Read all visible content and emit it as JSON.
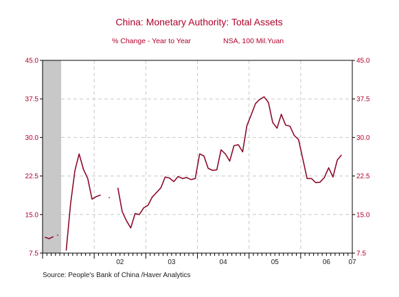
{
  "chart_data": {
    "type": "line",
    "title": "China: Monetary Authority: Total Assets",
    "subtitle_left": "% Change - Year to Year",
    "subtitle_right": "NSA, 100 Mil.Yuan",
    "source": "Source:  People's Bank of China /Haver Analytics",
    "xlim": [
      2001.0,
      2007.0
    ],
    "ylim": [
      7.5,
      45.0
    ],
    "y_ticks": [
      "45.0",
      "37.5",
      "30.0",
      "22.5",
      "15.0",
      "7.5"
    ],
    "y_tick_values": [
      45.0,
      37.5,
      30.0,
      22.5,
      15.0,
      7.5
    ],
    "x_ticks": [
      {
        "label": "02",
        "x": 2002.5
      },
      {
        "label": "03",
        "x": 2003.5
      },
      {
        "label": "04",
        "x": 2004.5
      },
      {
        "label": "05",
        "x": 2005.5
      },
      {
        "label": "06",
        "x": 2006.5
      },
      {
        "label": "07",
        "x": 2007.0
      }
    ],
    "x_gridlines": [
      2002,
      2003,
      2004,
      2005,
      2006
    ],
    "y_gridlines": [
      15.0,
      22.5,
      30.0,
      37.5
    ],
    "grid": true,
    "shaded_region": {
      "x_start": 2001.0,
      "x_end": 2001.36,
      "color": "#c8c8c8"
    },
    "line_color": "#8b0a2a",
    "series": [
      {
        "segments": [
          [
            [
              2001.042,
              10.6
            ],
            [
              2001.125,
              10.3
            ],
            [
              2001.208,
              10.7
            ]
          ],
          [
            [
              2001.292,
              11.1
            ],
            [
              2001.292,
              10.9
            ]
          ],
          [
            [
              2001.458,
              8.0
            ],
            [
              2001.542,
              17.0
            ],
            [
              2001.625,
              23.5
            ],
            [
              2001.708,
              26.8
            ],
            [
              2001.792,
              23.8
            ],
            [
              2001.875,
              22.0
            ],
            [
              2001.958,
              18.0
            ],
            [
              2002.042,
              18.5
            ],
            [
              2002.125,
              18.8
            ]
          ],
          [
            [
              2002.292,
              18.4
            ],
            [
              2002.292,
              18.2
            ]
          ],
          [
            [
              2002.458,
              20.2
            ],
            [
              2002.542,
              15.6
            ],
            [
              2002.625,
              13.8
            ],
            [
              2002.708,
              12.4
            ],
            [
              2002.792,
              15.2
            ],
            [
              2002.875,
              15.0
            ],
            [
              2002.958,
              16.3
            ],
            [
              2003.042,
              16.8
            ],
            [
              2003.125,
              18.4
            ],
            [
              2003.208,
              19.3
            ],
            [
              2003.292,
              20.2
            ],
            [
              2003.375,
              22.3
            ],
            [
              2003.458,
              22.1
            ],
            [
              2003.542,
              21.4
            ],
            [
              2003.625,
              22.4
            ],
            [
              2003.708,
              22.0
            ],
            [
              2003.792,
              22.2
            ],
            [
              2003.875,
              21.8
            ],
            [
              2003.958,
              22.0
            ],
            [
              2004.042,
              26.8
            ],
            [
              2004.125,
              26.4
            ],
            [
              2004.208,
              24.0
            ],
            [
              2004.292,
              23.6
            ],
            [
              2004.375,
              23.7
            ],
            [
              2004.458,
              27.6
            ],
            [
              2004.542,
              26.8
            ],
            [
              2004.625,
              25.4
            ],
            [
              2004.708,
              28.4
            ],
            [
              2004.792,
              28.6
            ],
            [
              2004.875,
              27.2
            ],
            [
              2004.958,
              32.3
            ],
            [
              2005.042,
              34.4
            ],
            [
              2005.125,
              36.6
            ],
            [
              2005.208,
              37.4
            ],
            [
              2005.292,
              37.9
            ],
            [
              2005.375,
              36.8
            ],
            [
              2005.458,
              32.9
            ],
            [
              2005.542,
              31.8
            ],
            [
              2005.625,
              34.5
            ],
            [
              2005.708,
              32.4
            ],
            [
              2005.792,
              32.2
            ],
            [
              2005.875,
              30.4
            ],
            [
              2005.958,
              29.6
            ],
            [
              2006.042,
              25.8
            ],
            [
              2006.125,
              22.0
            ],
            [
              2006.208,
              22.0
            ],
            [
              2006.292,
              21.2
            ],
            [
              2006.375,
              21.3
            ],
            [
              2006.458,
              22.2
            ],
            [
              2006.542,
              24.1
            ],
            [
              2006.625,
              22.3
            ],
            [
              2006.708,
              25.6
            ],
            [
              2006.792,
              26.6
            ]
          ]
        ]
      }
    ]
  }
}
